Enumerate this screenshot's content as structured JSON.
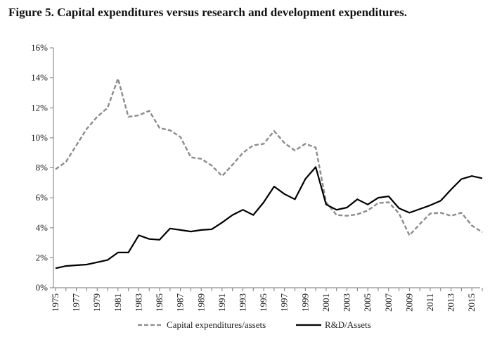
{
  "title": "Figure 5. Capital expenditures versus research and development expenditures.",
  "colors": {
    "capex": "#8c8c8c",
    "rd": "#000000",
    "axis": "#7a7a7a"
  },
  "chart_data": {
    "type": "line",
    "title": "Figure 5. Capital expenditures versus research and development expenditures.",
    "xlabel": "",
    "ylabel": "",
    "ylim": [
      0,
      16
    ],
    "yticks": [
      "0%",
      "2%",
      "4%",
      "6%",
      "8%",
      "10%",
      "12%",
      "14%",
      "16%"
    ],
    "xticks": [
      "1975",
      "1977",
      "1979",
      "1981",
      "1983",
      "1985",
      "1987",
      "1989",
      "1991",
      "1993",
      "1995",
      "1997",
      "1999",
      "2001",
      "2003",
      "2005",
      "2007",
      "2009",
      "2011",
      "2013",
      "2015"
    ],
    "grid": false,
    "legend": "bottom",
    "x": [
      1975,
      1976,
      1977,
      1978,
      1979,
      1980,
      1981,
      1982,
      1983,
      1984,
      1985,
      1986,
      1987,
      1988,
      1989,
      1990,
      1991,
      1992,
      1993,
      1994,
      1995,
      1996,
      1997,
      1998,
      1999,
      2000,
      2001,
      2002,
      2003,
      2004,
      2005,
      2006,
      2007,
      2008,
      2009,
      2010,
      2011,
      2012,
      2013,
      2014,
      2015,
      2016
    ],
    "series": [
      {
        "name": "Capital expenditures/assets",
        "style": "dashed",
        "values": [
          7.9,
          8.4,
          9.5,
          10.6,
          11.4,
          12.0,
          13.95,
          11.4,
          11.5,
          11.8,
          10.65,
          10.5,
          10.05,
          8.7,
          8.6,
          8.15,
          7.45,
          8.2,
          9.0,
          9.5,
          9.6,
          10.45,
          9.65,
          9.15,
          9.6,
          9.35,
          5.7,
          4.85,
          4.8,
          4.9,
          5.15,
          5.65,
          5.7,
          4.95,
          3.5,
          4.25,
          4.95,
          5.0,
          4.8,
          5.0,
          4.15,
          3.7
        ]
      },
      {
        "name": "R&D/Assets",
        "style": "solid",
        "values": [
          1.3,
          1.45,
          1.5,
          1.55,
          1.7,
          1.85,
          2.35,
          2.35,
          3.5,
          3.25,
          3.2,
          3.95,
          3.85,
          3.75,
          3.85,
          3.9,
          4.35,
          4.85,
          5.2,
          4.85,
          5.7,
          6.75,
          6.25,
          5.9,
          7.25,
          8.05,
          5.55,
          5.2,
          5.35,
          5.9,
          5.55,
          6.0,
          6.1,
          5.3,
          5.0,
          5.25,
          5.5,
          5.8,
          6.55,
          7.25,
          7.45,
          7.3
        ]
      }
    ]
  }
}
